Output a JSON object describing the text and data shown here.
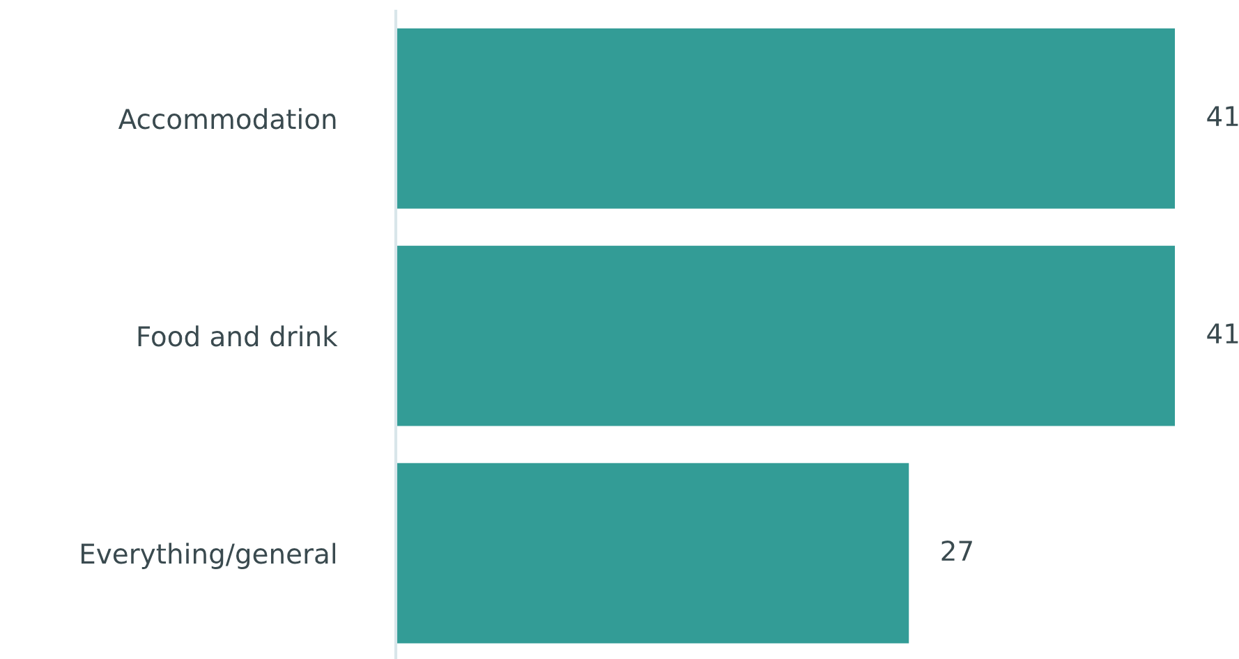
{
  "chart_data": {
    "type": "bar",
    "orientation": "horizontal",
    "categories": [
      "Accommodation",
      "Food and drink",
      "Everything/general"
    ],
    "values": [
      41,
      41,
      27
    ],
    "color": "#339c96",
    "data_labels": true
  }
}
